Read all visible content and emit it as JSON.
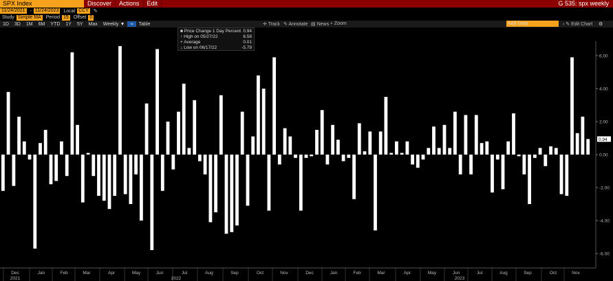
{
  "header": {
    "ticker": "SPX Index",
    "menu": [
      "Discover",
      "Actions",
      "Edit"
    ],
    "page_ref": "G 535: spx weekly"
  },
  "controls": {
    "start_date": "11/24/2021",
    "end_date": "11/24/2023",
    "currency_label": "Local",
    "currency": "CCY",
    "study_label": "Study",
    "study": "Simple MA",
    "period_label": "Period",
    "period": "15",
    "offset_label": "Offset",
    "offset": "0"
  },
  "range_buttons": [
    "1D",
    "3D",
    "1M",
    "6M",
    "YTD",
    "1Y",
    "5Y",
    "Max",
    "Weekly ▼",
    "Table"
  ],
  "toolbar": {
    "add_data": "Add Data",
    "edit_chart": "Edit Chart",
    "track": "Track",
    "annotate": "Annotate",
    "news": "News",
    "zoom": "Zoom"
  },
  "legend": {
    "series": "Price Change 1 Day Percent",
    "series_value": "0.94",
    "high_label": "High on 05/27/22",
    "high_value": "6.58",
    "avg_label": "Average",
    "avg_value": "0.01",
    "low_label": "Low on 06/17/22",
    "low_value": "-5.79"
  },
  "chart_data": {
    "type": "bar",
    "ylabel": "",
    "ylim": [
      -7,
      7
    ],
    "yticks": [
      "6.00",
      "4.00",
      "2.00",
      "0.00",
      "-2.00",
      "-4.00",
      "-6.00"
    ],
    "last_value_label": "0.94",
    "x_month_labels": [
      "Dec",
      "Jan",
      "Feb",
      "Mar",
      "Apr",
      "May",
      "Jun",
      "Jul",
      "Aug",
      "Sep",
      "Oct",
      "Nov",
      "Dec",
      "Jan",
      "Feb",
      "Mar",
      "Apr",
      "May",
      "Jun",
      "Jul",
      "Aug",
      "Sep",
      "Oct",
      "Nov"
    ],
    "x_year_labels": [
      "2021",
      "2022",
      "2023"
    ],
    "values": [
      -2.2,
      3.8,
      -1.9,
      2.3,
      0.8,
      -0.3,
      -5.7,
      0.7,
      1.5,
      -1.8,
      -1.6,
      0.8,
      -1.3,
      6.2,
      1.8,
      -2.9,
      0.1,
      -1.3,
      -2.5,
      -2.8,
      -3.3,
      -2.5,
      6.58,
      -2.4,
      -3.0,
      -1.2,
      -4.0,
      3.1,
      -5.79,
      6.4,
      -2.2,
      2.0,
      -0.9,
      2.6,
      4.3,
      0.4,
      3.3,
      -0.4,
      -1.2,
      -4.1,
      -3.5,
      3.6,
      -4.8,
      -4.7,
      -4.3,
      2.6,
      -3.1,
      1.1,
      4.8,
      4.0,
      -3.4,
      5.9,
      -0.6,
      1.6,
      1.1,
      -0.2,
      -3.4,
      -0.2,
      -0.1,
      1.5,
      2.7,
      -0.6,
      1.8,
      0.9,
      -0.4,
      -0.2,
      -2.7,
      1.9,
      0.2,
      1.4,
      -4.6,
      1.4,
      3.5,
      0.1,
      0.8,
      0.1,
      0.8,
      -0.6,
      -0.8,
      -0.3,
      0.4,
      1.7,
      0.4,
      1.8,
      0.4,
      2.6,
      -1.2,
      2.4,
      -1.2,
      2.4,
      0.7,
      0.8,
      -2.3,
      -0.3,
      -2.1,
      0.8,
      2.5,
      -0.1,
      -1.2,
      -3.0,
      -0.2,
      0.4,
      -0.7,
      0.5,
      0.4,
      -2.4,
      -2.5,
      5.9,
      1.3,
      2.3,
      0.94
    ]
  }
}
